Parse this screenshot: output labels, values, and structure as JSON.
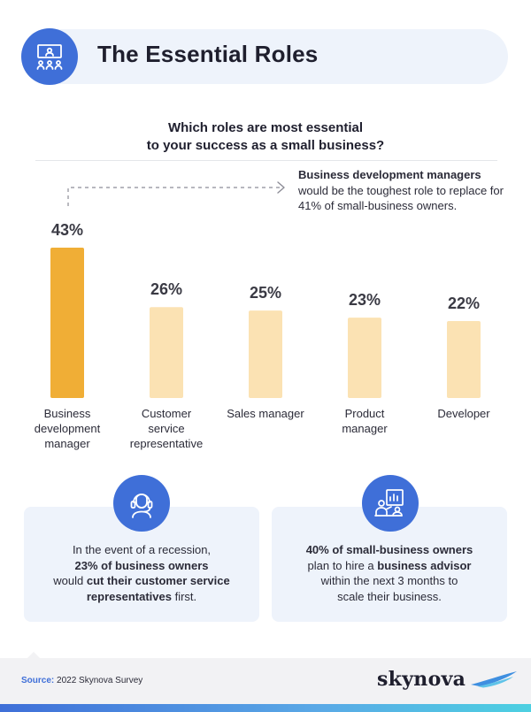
{
  "header": {
    "title": "The Essential Roles",
    "icon": "presentation-meeting-icon"
  },
  "question": {
    "line1": "Which roles are most essential",
    "line2": "to your success as a small business?"
  },
  "callout": {
    "bold": "Business development managers",
    "rest": "would be the toughest role to replace for 41% of small-business owners."
  },
  "chart_data": {
    "type": "bar",
    "title": "Which roles are most essential to your success as a small business?",
    "categories": [
      [
        "Business",
        "development",
        "manager"
      ],
      [
        "Customer",
        "service",
        "representative"
      ],
      [
        "Sales manager"
      ],
      [
        "Product",
        "manager"
      ],
      [
        "Developer"
      ]
    ],
    "values": [
      43,
      26,
      25,
      23,
      22
    ],
    "value_labels": [
      "43%",
      "26%",
      "25%",
      "23%",
      "22%"
    ],
    "unit": "%",
    "colors": {
      "highlight": "#f0ae36",
      "default": "#fbe2b3",
      "label": "#3a3a44",
      "baseline": "#e4e6ea"
    },
    "highlight_index": 0,
    "ylim": [
      0,
      43
    ],
    "grid": false,
    "legend": "none"
  },
  "cards": [
    {
      "icon": "customer-service-headset-icon",
      "line1": "In the event of a recession,",
      "line2": "23% of business owners",
      "line3_pre": "would ",
      "line3_bold": "cut their customer service",
      "line4_bold": "representatives",
      "line4_rest": " first."
    },
    {
      "icon": "business-advisor-presentation-icon",
      "line1_bold": "40% of small-business owners",
      "line2_pre": "plan to hire a ",
      "line2_bold": "business advisor",
      "line3": "within the next 3 months to",
      "line4": "scale their business."
    }
  ],
  "footer": {
    "source_label": "Source:",
    "source_text": "2022 Skynova Survey",
    "brand": "skynova"
  },
  "theme": {
    "accent": "#3f6fd8",
    "panel": "#eef3fb"
  }
}
